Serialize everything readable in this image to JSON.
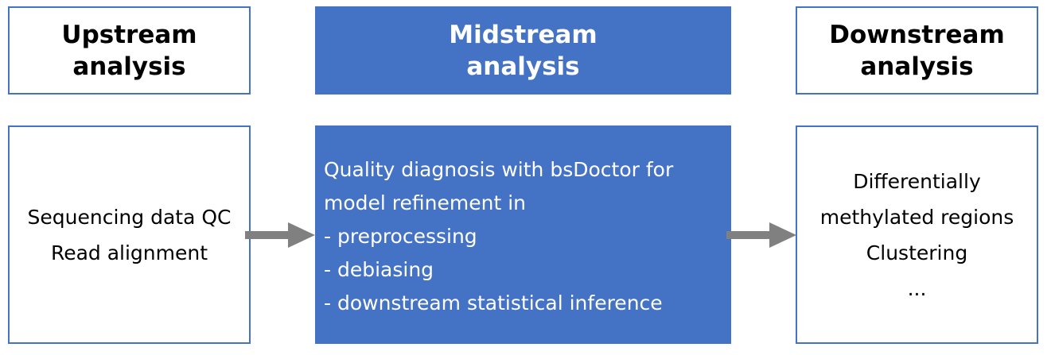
{
  "headers": {
    "upstream": [
      "Upstream",
      "analysis"
    ],
    "midstream": [
      "Midstream",
      "analysis"
    ],
    "downstream": [
      "Downstream",
      "analysis"
    ]
  },
  "bodies": {
    "upstream": [
      "Sequencing data QC",
      "Read alignment"
    ],
    "midstream": [
      "Quality diagnosis with bsDoctor for",
      "model refinement in",
      "- preprocessing",
      "- debiasing",
      "- downstream statistical inference"
    ],
    "downstream": [
      "Differentially",
      "methylated regions",
      "Clustering",
      "..."
    ]
  },
  "colors": {
    "accent_blue": "#4472C4",
    "arrow_gray": "#808080"
  }
}
